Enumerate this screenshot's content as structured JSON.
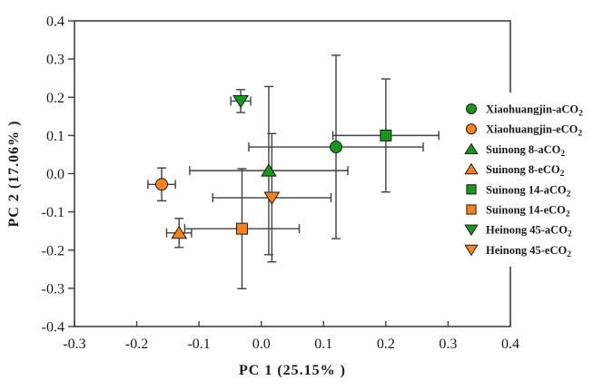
{
  "chart_data": {
    "type": "scatter",
    "title": "",
    "xlabel": "PC 1 (25.15% )",
    "ylabel": "PC 2 (17.06% )",
    "xlim": [
      -0.3,
      0.4
    ],
    "ylim": [
      -0.4,
      0.4
    ],
    "xtick_values": [
      -0.3,
      -0.2,
      -0.1,
      0,
      0.1,
      0.2,
      0.3,
      0.4
    ],
    "xtick_labels": [
      "-0.3",
      "-0.2",
      "-0.1",
      "0.0",
      "0.1",
      "0.2",
      "0.3",
      "0.4"
    ],
    "ytick_values": [
      -0.4,
      -0.3,
      -0.2,
      -0.1,
      0,
      0.1,
      0.2,
      0.3,
      0.4
    ],
    "ytick_labels": [
      "-0.4",
      "-0.3",
      "-0.2",
      "-0.1",
      "0.0",
      "0.1",
      "0.2",
      "0.3",
      "0.4"
    ],
    "grid": false,
    "legend_position": "right-inside",
    "colors": {
      "ambient_green": "#1A961E",
      "elevated_orange": "#F8821E",
      "axis": "#3F3F3F",
      "marker_outline": "#1A1A1A",
      "text": "#1A1A1A"
    },
    "series": [
      {
        "label": "Xiaohuangjin-aCO",
        "label_sub": "2",
        "marker": "circle",
        "color_key": "ambient_green",
        "x": 0.12,
        "y": 0.07,
        "xerr": 0.14,
        "yerr": 0.24
      },
      {
        "label": "Xiaohuangjin-eCO",
        "label_sub": "2",
        "marker": "circle",
        "color_key": "elevated_orange",
        "x": -0.16,
        "y": -0.028,
        "xerr": 0.022,
        "yerr": 0.043
      },
      {
        "label": "Suinong 8-aCO",
        "label_sub": "2",
        "marker": "triangle-up",
        "color_key": "ambient_green",
        "x": 0.012,
        "y": 0.008,
        "xerr": 0.127,
        "yerr": 0.22
      },
      {
        "label": "Suinong 8-eCO",
        "label_sub": "2",
        "marker": "triangle-up",
        "color_key": "elevated_orange",
        "x": -0.132,
        "y": -0.155,
        "xerr": 0.02,
        "yerr": 0.038
      },
      {
        "label": "Suinong 14-aCO",
        "label_sub": "2",
        "marker": "square",
        "color_key": "ambient_green",
        "x": 0.2,
        "y": 0.1,
        "xerr": 0.085,
        "yerr": 0.148
      },
      {
        "label": "Suinong 14-eCO",
        "label_sub": "2",
        "marker": "square",
        "color_key": "elevated_orange",
        "x": -0.031,
        "y": -0.144,
        "xerr": 0.092,
        "yerr": 0.157
      },
      {
        "label": "Heinong 45-aCO",
        "label_sub": "2",
        "marker": "triangle-down",
        "color_key": "ambient_green",
        "x": -0.033,
        "y": 0.19,
        "xerr": 0.016,
        "yerr": 0.03
      },
      {
        "label": "Heinong 45-eCO",
        "label_sub": "2",
        "marker": "triangle-down",
        "color_key": "elevated_orange",
        "x": 0.017,
        "y": -0.063,
        "xerr": 0.095,
        "yerr": 0.168
      }
    ]
  }
}
